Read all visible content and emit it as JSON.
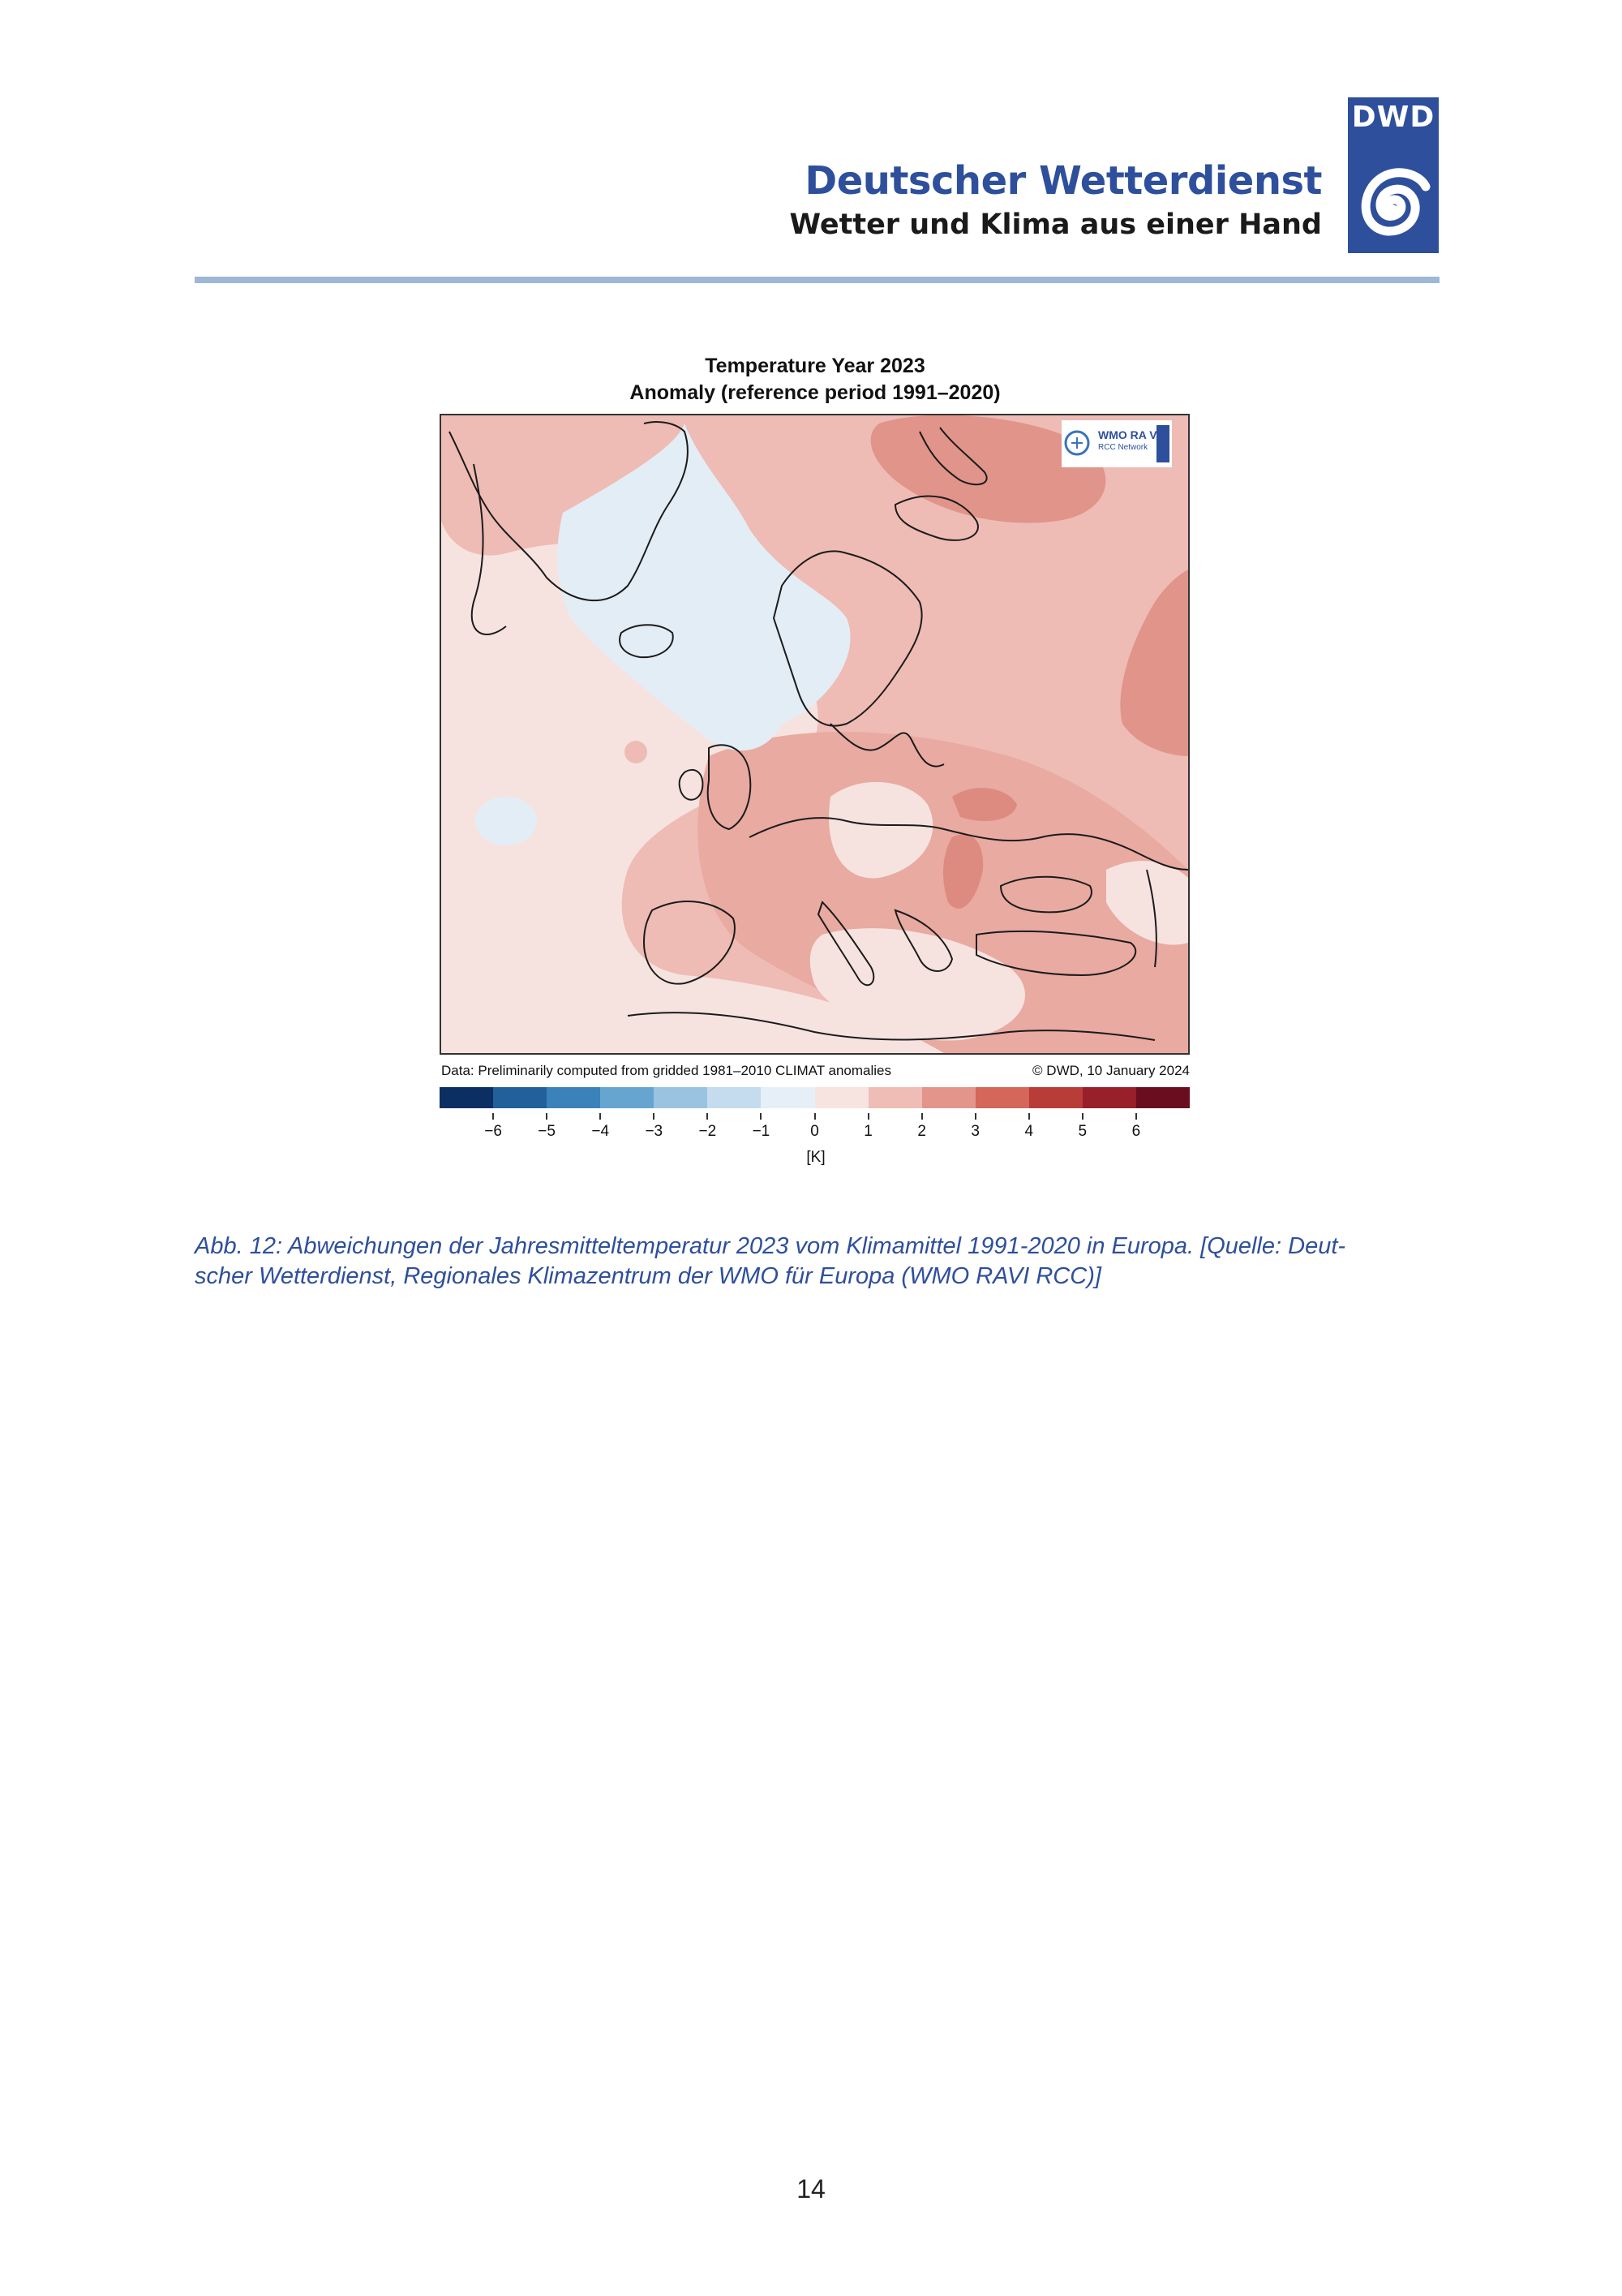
{
  "header": {
    "title": "Deutscher Wetterdienst",
    "subtitle": "Wetter und Klima aus einer Hand",
    "logo_text": "DWD"
  },
  "figure": {
    "title_line1": "Temperature Year 2023",
    "title_line2": "Anomaly (reference period 1991–2020)",
    "note_left": "Data: Preliminarily computed from gridded 1981–2010 CLIMAT anomalies",
    "note_right": "© DWD, 10 January 2024",
    "badge_text_main": "WMO RA VI",
    "badge_text_sub": "RCC Network",
    "colorbar": {
      "colors": [
        "#0b2f63",
        "#22609c",
        "#3b82ba",
        "#67a5d1",
        "#99c3e1",
        "#c5dcee",
        "#e6eff7",
        "#f7e4e1",
        "#efbdb6",
        "#e3958b",
        "#d4665a",
        "#b83c38",
        "#97202a",
        "#6a0d1e"
      ],
      "tick_labels": [
        "−6",
        "−5",
        "−4",
        "−3",
        "−2",
        "−1",
        "0",
        "1",
        "2",
        "3",
        "4",
        "5",
        "6"
      ],
      "unit": "[K]"
    }
  },
  "caption": {
    "line1": "Abb. 12: Abweichungen der Jahresmitteltemperatur 2023 vom Klimamittel 1991-2020 in Europa. [Quelle: Deut-",
    "line2": "scher Wetterdienst, Regionales Klimazentrum der WMO für Europa (WMO RAVI RCC)]"
  },
  "page_number": "14"
}
